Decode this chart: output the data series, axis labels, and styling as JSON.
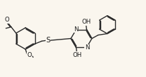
{
  "bg_color": "#faf6ee",
  "bond_color": "#2a2a2a",
  "bond_width": 1.0,
  "text_color": "#1a1a1a",
  "font_size": 6.2,
  "figsize": [
    2.08,
    1.11
  ],
  "dpi": 100,
  "xlim": [
    0,
    20
  ],
  "ylim": [
    0,
    11
  ]
}
